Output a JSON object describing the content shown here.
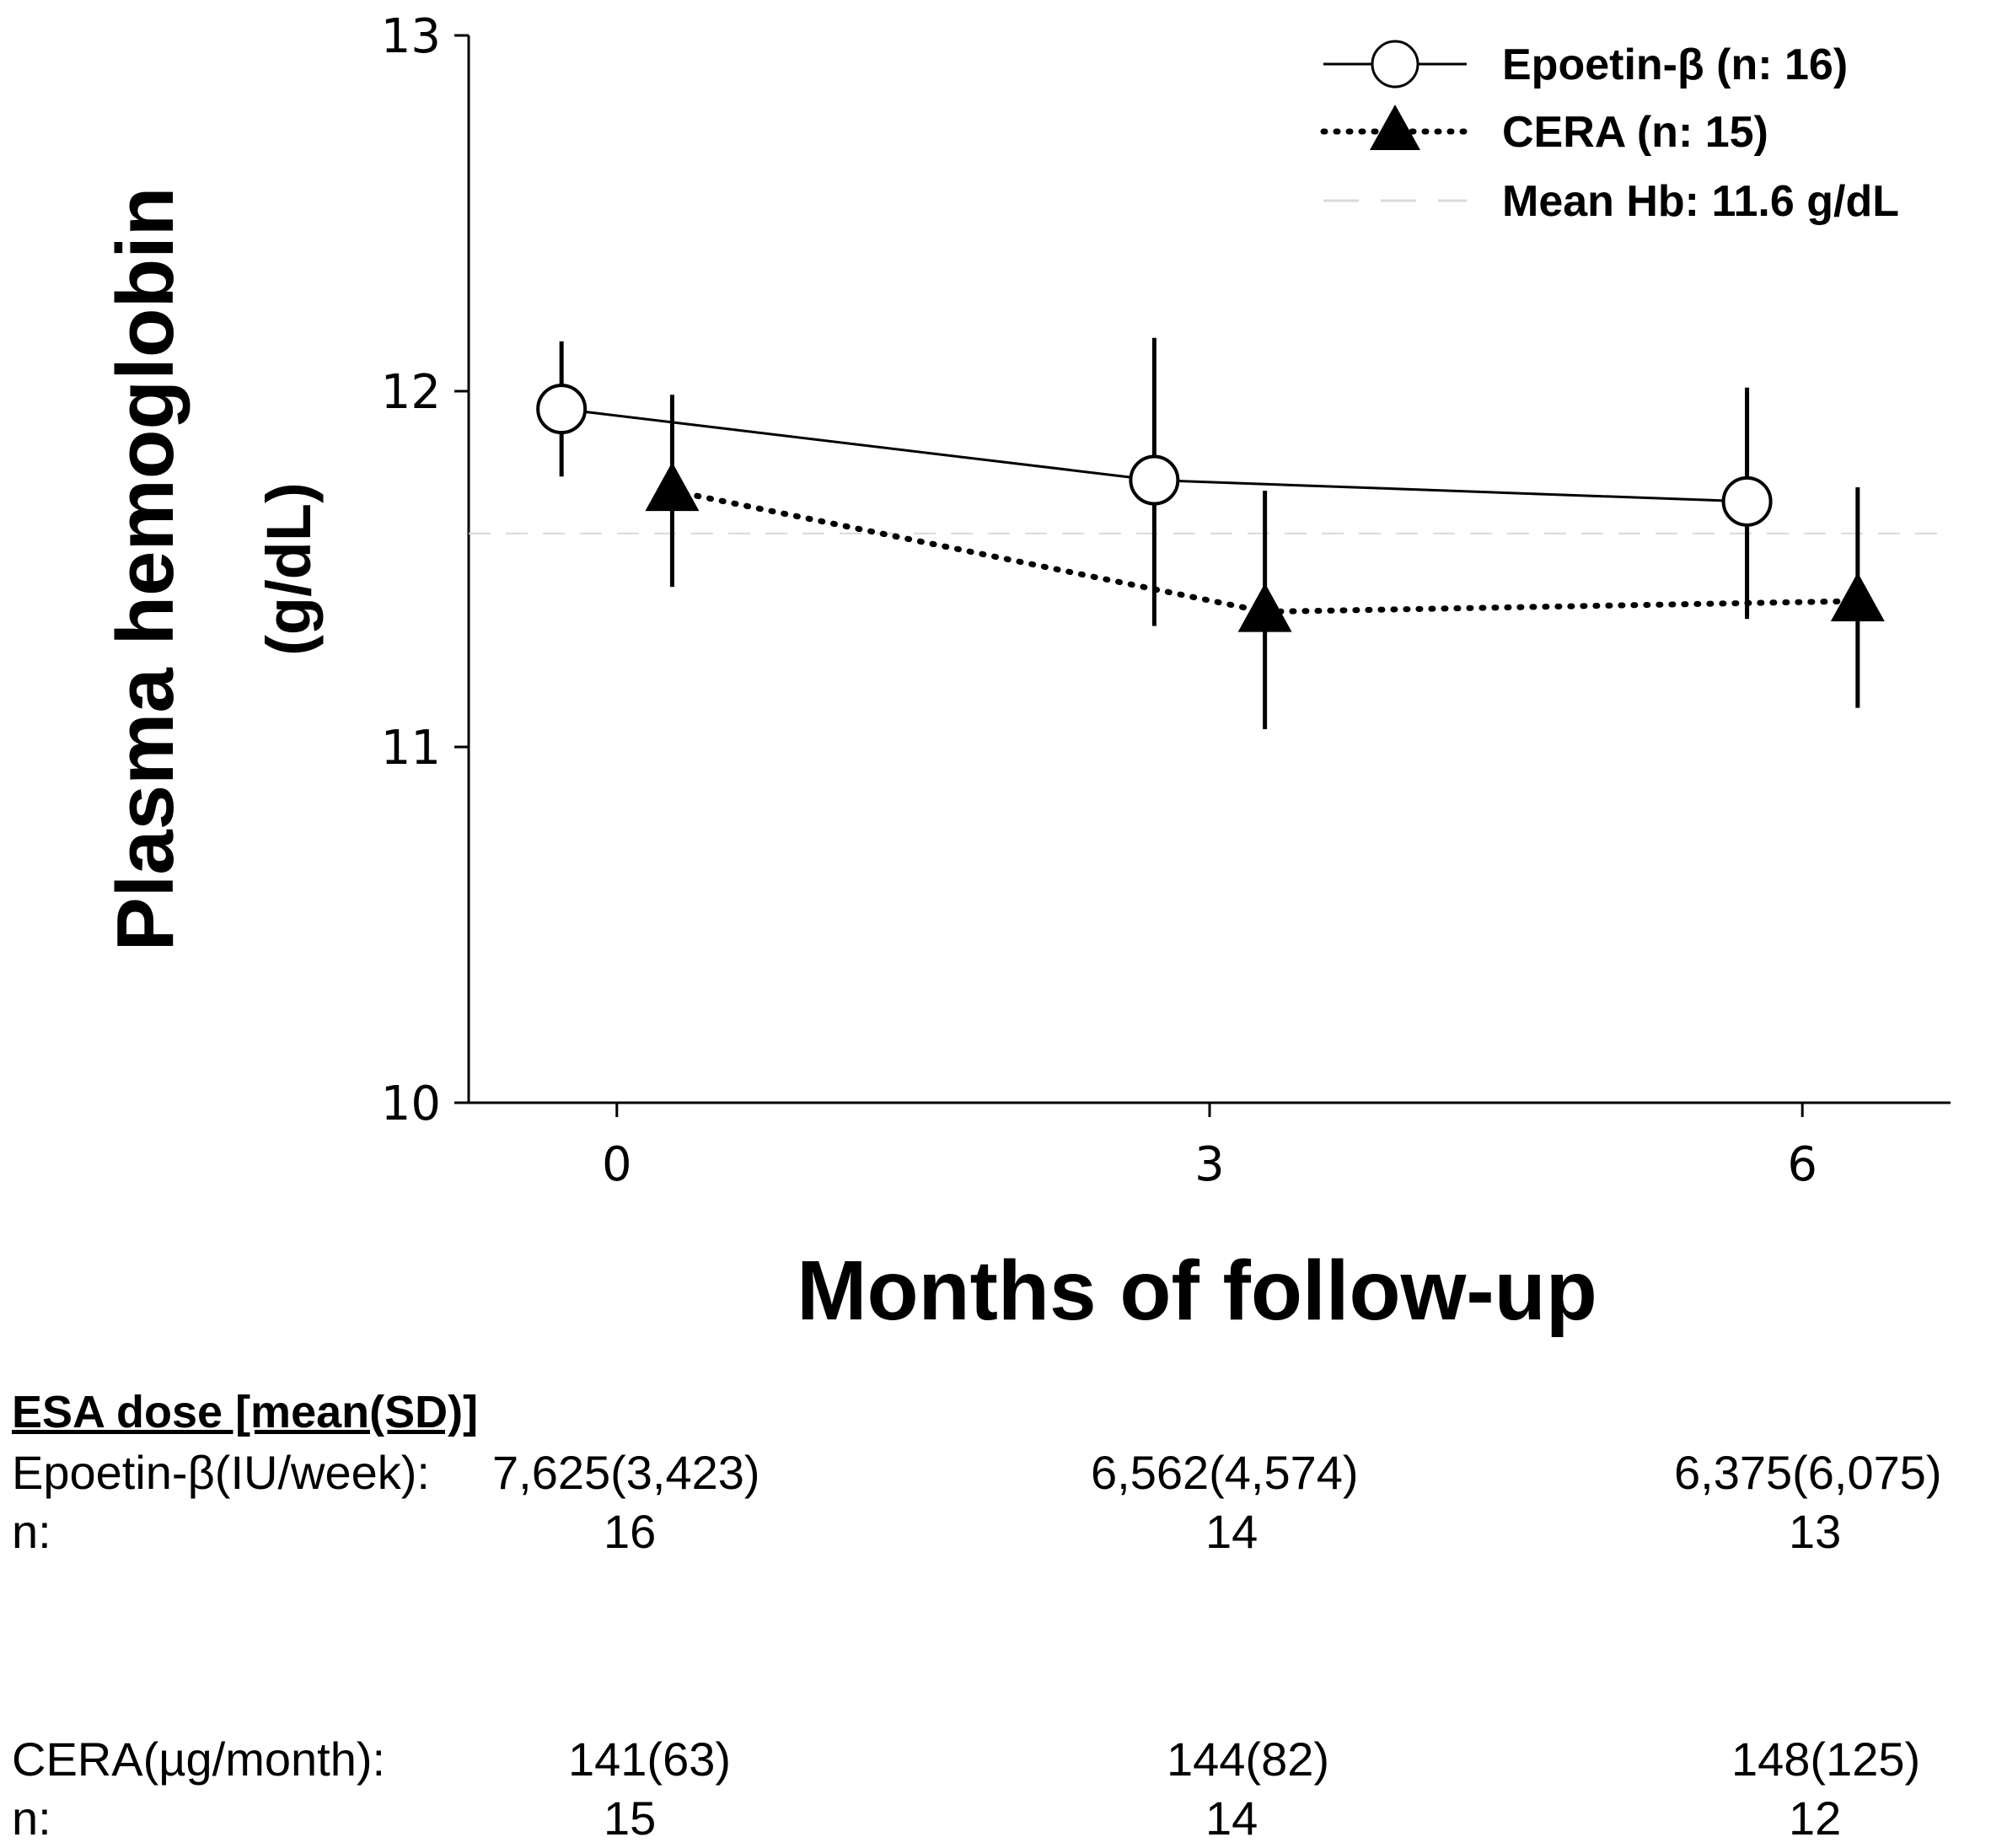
{
  "chart_data": {
    "type": "line",
    "title": "",
    "xlabel": "Months of follow-up",
    "ylabel_line1": "Plasma hemoglobin",
    "ylabel_line2": "(g/dL)",
    "x_ticks": [
      "0",
      "3",
      "6"
    ],
    "y_ticks": [
      "10",
      "11",
      "12",
      "13"
    ],
    "xlim": [
      -0.75,
      6.75
    ],
    "ylim": [
      10,
      13
    ],
    "grid": false,
    "legend_position": "top-right",
    "series": [
      {
        "name": "Epoetin-β (n: 16)",
        "marker": "open-circle",
        "line": "solid",
        "x": [
          0,
          3,
          6
        ],
        "y": [
          11.95,
          11.75,
          11.69
        ],
        "err_low": [
          11.76,
          11.34,
          11.36
        ],
        "err_high": [
          12.14,
          12.15,
          12.01
        ]
      },
      {
        "name": "CERA (n: 15)",
        "marker": "filled-triangle",
        "line": "dotted",
        "x": [
          0,
          3,
          6
        ],
        "y": [
          11.72,
          11.38,
          11.41
        ],
        "err_low": [
          11.45,
          11.05,
          11.11
        ],
        "err_high": [
          11.99,
          11.72,
          11.73
        ]
      }
    ],
    "reference_line": {
      "name": "Mean Hb: 11.6 g/dL",
      "y": 11.6,
      "style": "dashed",
      "color": "#d9d9d9"
    },
    "colors": {
      "line": "#000000",
      "marker_fill_open": "#ffffff",
      "marker_fill_filled": "#000000",
      "reference": "#d9d9d9"
    }
  },
  "dose_table": {
    "title": "ESA dose [mean(SD)]",
    "epo_label": "Epoetin-β(IU/week):",
    "epo_values": [
      "7,625(3,423)",
      "6,562(4,574)",
      "6,375(6,075)"
    ],
    "epo_n_label": "n:",
    "epo_n": [
      "16",
      "14",
      "13"
    ],
    "cera_label": "CERA(µg/month):",
    "cera_values": [
      "141(63)",
      "144(82)",
      "148(125)"
    ],
    "cera_n_label": "n:",
    "cera_n": [
      "15",
      "14",
      "12"
    ]
  }
}
